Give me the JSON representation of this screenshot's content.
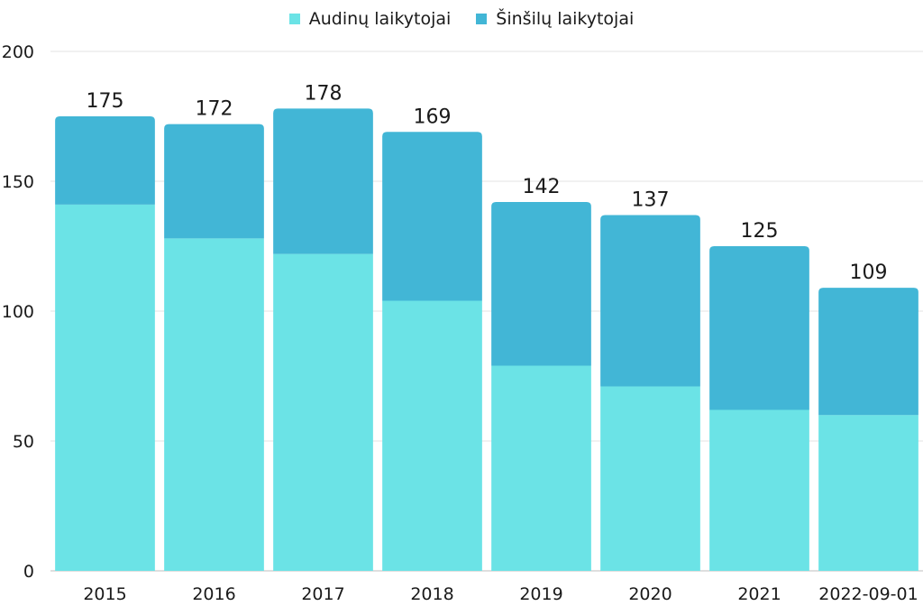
{
  "chart_data": {
    "type": "bar",
    "stacked": true,
    "title": "",
    "xlabel": "",
    "ylabel": "",
    "ylim": [
      0,
      200
    ],
    "yticks": [
      0,
      50,
      100,
      150,
      200
    ],
    "grid": true,
    "legend_position": "top-center",
    "categories": [
      "2015",
      "2016",
      "2017",
      "2018",
      "2019",
      "2020",
      "2021",
      "2022-09-01"
    ],
    "series": [
      {
        "name": "Audinų laikytojai",
        "color": "#6be3e6",
        "values": [
          141,
          128,
          122,
          104,
          79,
          71,
          62,
          60
        ]
      },
      {
        "name": "Šinšilų laikytojai",
        "color": "#42b6d6",
        "values": [
          34,
          44,
          56,
          65,
          63,
          66,
          63,
          49
        ]
      }
    ],
    "totals": [
      175,
      172,
      178,
      169,
      142,
      137,
      125,
      109
    ]
  }
}
